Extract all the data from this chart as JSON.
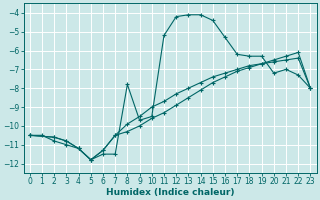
{
  "xlabel": "Humidex (Indice chaleur)",
  "background_color": "#cce8e8",
  "grid_color": "#d0e8e8",
  "line_color": "#006666",
  "xlim": [
    -0.5,
    23.5
  ],
  "ylim": [
    -12.5,
    -3.5
  ],
  "xticks": [
    0,
    1,
    2,
    3,
    4,
    5,
    6,
    7,
    8,
    9,
    10,
    11,
    12,
    13,
    14,
    15,
    16,
    17,
    18,
    19,
    20,
    21,
    22,
    23
  ],
  "yticks": [
    -12,
    -11,
    -10,
    -9,
    -8,
    -7,
    -6,
    -5,
    -4
  ],
  "main_x": [
    0,
    1,
    2,
    3,
    4,
    5,
    6,
    7,
    8,
    9,
    10,
    11,
    12,
    13,
    14,
    15,
    16,
    17,
    18,
    19,
    20,
    21,
    22,
    23
  ],
  "main_y": [
    -10.5,
    -10.5,
    -10.8,
    -11.0,
    -11.2,
    -11.8,
    -11.5,
    -11.5,
    -7.8,
    -9.7,
    -9.5,
    -5.2,
    -4.2,
    -4.1,
    -4.1,
    -4.4,
    -5.3,
    -6.2,
    -6.3,
    -6.3,
    -7.2,
    -7.0,
    -7.3,
    -8.0
  ],
  "lin1_x": [
    0,
    2,
    3,
    4,
    5,
    6,
    7,
    8,
    9,
    10,
    11,
    12,
    13,
    14,
    15,
    16,
    17,
    18,
    19,
    20,
    21,
    22,
    23
  ],
  "lin1_y": [
    -10.5,
    -10.6,
    -10.8,
    -11.2,
    -11.8,
    -11.3,
    -10.5,
    -9.9,
    -9.5,
    -9.0,
    -8.7,
    -8.3,
    -8.0,
    -7.7,
    -7.4,
    -7.2,
    -7.0,
    -6.8,
    -6.7,
    -6.6,
    -6.5,
    -6.4,
    -8.0
  ],
  "lin2_x": [
    0,
    2,
    3,
    4,
    5,
    6,
    7,
    8,
    9,
    10,
    11,
    12,
    13,
    14,
    15,
    16,
    17,
    18,
    19,
    20,
    21,
    22,
    23
  ],
  "lin2_y": [
    -10.5,
    -10.6,
    -10.8,
    -11.2,
    -11.8,
    -11.3,
    -10.5,
    -10.3,
    -10.0,
    -9.6,
    -9.3,
    -8.9,
    -8.5,
    -8.1,
    -7.7,
    -7.4,
    -7.1,
    -6.9,
    -6.7,
    -6.5,
    -6.3,
    -6.1,
    -8.0
  ]
}
